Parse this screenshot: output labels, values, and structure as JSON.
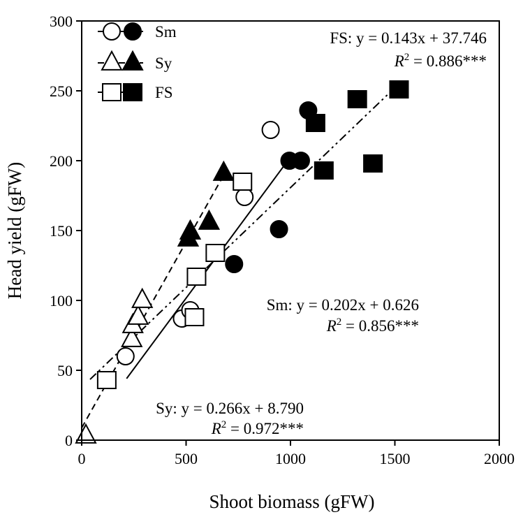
{
  "chart_data": {
    "type": "scatter",
    "xlabel": "Shoot biomass (gFW)",
    "ylabel": "Head yield (gFW)",
    "xlim": [
      0,
      2000
    ],
    "ylim": [
      0,
      300
    ],
    "xticks": [
      "0",
      "500",
      "1000",
      "1500",
      "2000"
    ],
    "yticks": [
      "0",
      "50",
      "100",
      "150",
      "200",
      "250",
      "300"
    ],
    "grid": false,
    "legend_placement": "top-left",
    "series": [
      {
        "name": "Sm",
        "marker": "circle",
        "line_style": "solid",
        "points_open": [
          [
            210,
            60
          ],
          [
            480,
            87
          ],
          [
            520,
            93
          ],
          [
            780,
            174
          ],
          [
            905,
            222
          ]
        ],
        "points_filled": [
          [
            730,
            126
          ],
          [
            945,
            151
          ],
          [
            995,
            200
          ],
          [
            1050,
            200
          ],
          [
            1085,
            236
          ]
        ],
        "fit_range": [
          215,
          1000
        ],
        "slope": 0.202,
        "intercept": 0.626,
        "equation": "Sm: y = 0.202x + 0.626",
        "r2_label": "R",
        "r2_value": " = 0.856***"
      },
      {
        "name": "Sy",
        "marker": "triangle",
        "line_style": "dashed",
        "points_open": [
          [
            20,
            3
          ],
          [
            240,
            72
          ],
          [
            245,
            82
          ],
          [
            270,
            88
          ],
          [
            290,
            100
          ]
        ],
        "points_filled": [
          [
            510,
            144
          ],
          [
            520,
            149
          ],
          [
            610,
            156
          ],
          [
            680,
            191
          ]
        ],
        "fit_range": [
          0,
          680
        ],
        "slope": 0.266,
        "intercept": 8.79,
        "equation": "Sy: y = 0.266x + 8.790",
        "r2_label": "R",
        "r2_value": " = 0.972***"
      },
      {
        "name": "FS",
        "marker": "square",
        "line_style": "dash-dot-dot",
        "points_open": [
          [
            120,
            43
          ],
          [
            540,
            88
          ],
          [
            550,
            117
          ],
          [
            640,
            134
          ],
          [
            770,
            185
          ]
        ],
        "points_filled": [
          [
            1120,
            227
          ],
          [
            1160,
            193
          ],
          [
            1320,
            244
          ],
          [
            1395,
            198
          ],
          [
            1520,
            251
          ]
        ],
        "fit_range": [
          40,
          1520
        ],
        "slope": 0.143,
        "intercept": 37.746,
        "equation": "FS: y = 0.143x + 37.746",
        "r2_label": "R",
        "r2_value": " = 0.886***"
      }
    ]
  }
}
